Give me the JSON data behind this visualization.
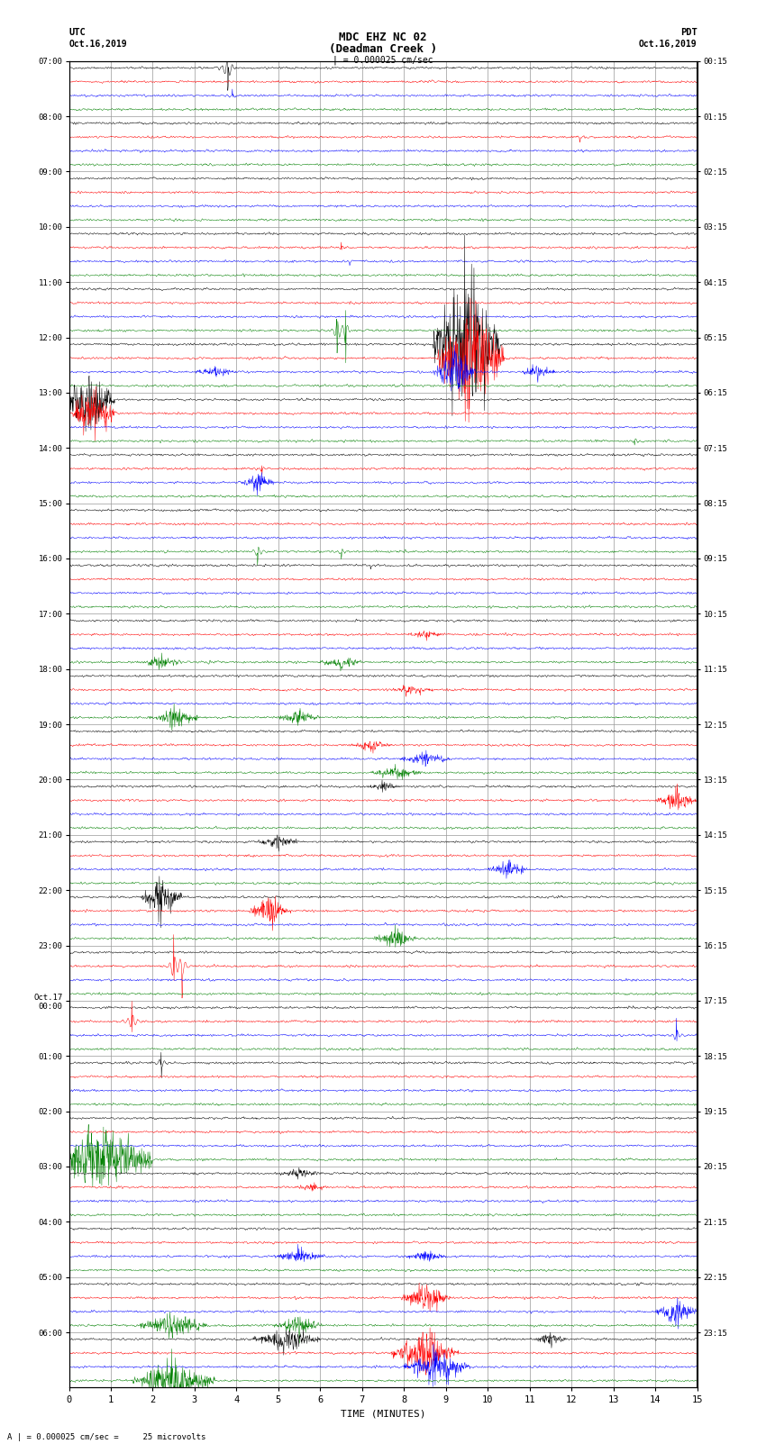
{
  "title_line1": "MDC EHZ NC 02",
  "title_line2": "(Deadman Creek )",
  "title_line3": "| = 0.000025 cm/sec",
  "utc_label": "UTC",
  "utc_date": "Oct.16,2019",
  "pdt_label": "PDT",
  "pdt_date": "Oct.16,2019",
  "xlabel": "TIME (MINUTES)",
  "bottom_note": "= 0.000025 cm/sec =     25 microvolts",
  "left_times": [
    "07:00",
    "08:00",
    "09:00",
    "10:00",
    "11:00",
    "12:00",
    "13:00",
    "14:00",
    "15:00",
    "16:00",
    "17:00",
    "18:00",
    "19:00",
    "20:00",
    "21:00",
    "22:00",
    "23:00",
    "Oct.17\n00:00",
    "01:00",
    "02:00",
    "03:00",
    "04:00",
    "05:00",
    "06:00"
  ],
  "right_times": [
    "00:15",
    "01:15",
    "02:15",
    "03:15",
    "04:15",
    "05:15",
    "06:15",
    "07:15",
    "08:15",
    "09:15",
    "10:15",
    "11:15",
    "12:15",
    "13:15",
    "14:15",
    "15:15",
    "16:15",
    "17:15",
    "18:15",
    "19:15",
    "20:15",
    "21:15",
    "22:15",
    "23:15"
  ],
  "num_hours": 24,
  "traces_per_hour": 4,
  "row_colors": [
    "black",
    "red",
    "blue",
    "green"
  ],
  "xmin": 0,
  "xmax": 15,
  "background_color": "white",
  "grid_color": "#999999",
  "seed": 42
}
